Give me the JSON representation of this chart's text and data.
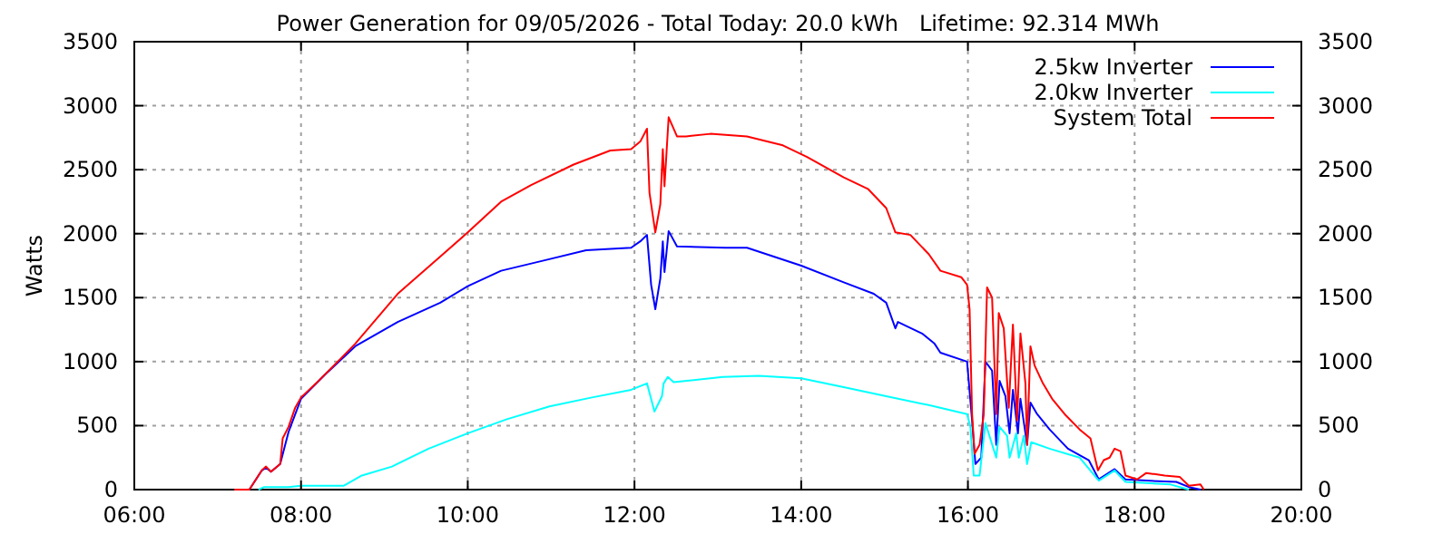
{
  "chart_data": {
    "type": "line",
    "title": "Power Generation for 09/05/2026 - Total Today: 20.0 kWh   Lifetime: 92.314 MWh",
    "ylabel": "Watts",
    "xlim": [
      6,
      20
    ],
    "xticks": [
      {
        "value": 6,
        "label": "06:00"
      },
      {
        "value": 8,
        "label": "08:00"
      },
      {
        "value": 10,
        "label": "10:00"
      },
      {
        "value": 12,
        "label": "12:00"
      },
      {
        "value": 14,
        "label": "14:00"
      },
      {
        "value": 16,
        "label": "16:00"
      },
      {
        "value": 18,
        "label": "18:00"
      },
      {
        "value": 20,
        "label": "20:00"
      }
    ],
    "ylim": [
      0,
      3500
    ],
    "yticks": [
      0,
      500,
      1000,
      1500,
      2000,
      2500,
      3000,
      3500
    ],
    "y2lim": [
      0,
      3500
    ],
    "y2ticks": [
      0,
      500,
      1000,
      1500,
      2000,
      2500,
      3000,
      3500
    ],
    "grid": true,
    "legend": "top right",
    "line_style": "solid",
    "marker": "none",
    "series": [
      {
        "name": "2.5kw Inverter",
        "color": "#0000ff",
        "x": [
          7.2,
          7.38,
          7.53,
          7.58,
          7.64,
          7.75,
          7.85,
          8.0,
          8.29,
          8.65,
          9.16,
          9.67,
          10.0,
          10.4,
          10.91,
          11.42,
          11.96,
          12.07,
          12.15,
          12.2,
          12.25,
          12.31,
          12.34,
          12.36,
          12.41,
          12.51,
          13.09,
          13.35,
          14.0,
          14.51,
          14.87,
          15.02,
          15.13,
          15.16,
          15.45,
          15.6,
          15.67,
          15.99,
          16.05,
          16.09,
          16.16,
          16.21,
          16.29,
          16.34,
          16.38,
          16.45,
          16.5,
          16.54,
          16.6,
          16.63,
          16.71,
          16.75,
          16.83,
          16.98,
          17.2,
          17.45,
          17.57,
          17.76,
          17.89,
          18.14,
          18.5,
          18.65,
          18.79
        ],
        "values": [
          0,
          0,
          150,
          170,
          140,
          200,
          450,
          710,
          900,
          1120,
          1310,
          1460,
          1590,
          1710,
          1790,
          1870,
          1890,
          1940,
          1990,
          1600,
          1410,
          1650,
          1940,
          1700,
          2020,
          1900,
          1890,
          1890,
          1750,
          1620,
          1530,
          1460,
          1260,
          1310,
          1220,
          1140,
          1070,
          1000,
          540,
          200,
          250,
          1000,
          930,
          350,
          850,
          730,
          440,
          780,
          440,
          710,
          350,
          680,
          590,
          470,
          320,
          230,
          80,
          160,
          80,
          70,
          60,
          20,
          0
        ]
      },
      {
        "name": "2.0kw Inverter",
        "color": "#00ffff",
        "x": [
          7.49,
          7.56,
          7.85,
          8.0,
          8.51,
          8.73,
          9.09,
          9.53,
          10.0,
          10.47,
          10.98,
          11.49,
          11.96,
          12.15,
          12.24,
          12.33,
          12.35,
          12.4,
          12.47,
          13.06,
          13.49,
          14.0,
          14.51,
          15.02,
          15.53,
          15.99,
          16.03,
          16.07,
          16.14,
          16.21,
          16.34,
          16.38,
          16.47,
          16.5,
          16.58,
          16.61,
          16.67,
          16.71,
          16.76,
          16.98,
          17.34,
          17.57,
          17.76,
          17.89,
          18.43,
          18.65
        ],
        "values": [
          0,
          20,
          20,
          30,
          30,
          110,
          180,
          320,
          440,
          550,
          650,
          720,
          780,
          830,
          610,
          730,
          830,
          880,
          840,
          880,
          890,
          870,
          800,
          730,
          660,
          590,
          490,
          110,
          110,
          520,
          250,
          490,
          420,
          250,
          440,
          250,
          420,
          200,
          370,
          320,
          250,
          70,
          150,
          60,
          40,
          0
        ]
      },
      {
        "name": "System Total",
        "color": "#ff0000",
        "x": [
          7.2,
          7.38,
          7.53,
          7.58,
          7.64,
          7.75,
          7.78,
          7.85,
          7.93,
          8.0,
          8.18,
          8.44,
          8.65,
          9.16,
          9.67,
          10.0,
          10.4,
          10.76,
          11.27,
          11.71,
          11.96,
          12.07,
          12.15,
          12.18,
          12.25,
          12.31,
          12.34,
          12.36,
          12.41,
          12.51,
          12.62,
          12.91,
          13.35,
          13.78,
          14.07,
          14.51,
          14.8,
          15.02,
          15.13,
          15.31,
          15.53,
          15.67,
          15.92,
          15.99,
          16.02,
          16.05,
          16.08,
          16.14,
          16.19,
          16.23,
          16.29,
          16.34,
          16.37,
          16.43,
          16.49,
          16.54,
          16.59,
          16.63,
          16.69,
          16.71,
          16.75,
          16.8,
          16.9,
          17.01,
          17.16,
          17.34,
          17.47,
          17.56,
          17.63,
          17.7,
          17.76,
          17.83,
          17.89,
          18.03,
          18.14,
          18.36,
          18.54,
          18.65,
          18.79,
          18.83
        ],
        "values": [
          0,
          0,
          150,
          180,
          140,
          200,
          400,
          490,
          640,
          720,
          830,
          1000,
          1140,
          1530,
          1820,
          2010,
          2250,
          2380,
          2540,
          2650,
          2660,
          2720,
          2820,
          2320,
          2010,
          2230,
          2660,
          2370,
          2910,
          2760,
          2760,
          2780,
          2760,
          2690,
          2600,
          2440,
          2350,
          2200,
          2010,
          1990,
          1840,
          1710,
          1660,
          1600,
          1410,
          590,
          280,
          350,
          590,
          1580,
          1500,
          590,
          1380,
          1260,
          640,
          1290,
          540,
          1220,
          830,
          350,
          1120,
          970,
          830,
          710,
          590,
          470,
          400,
          150,
          230,
          250,
          320,
          300,
          110,
          80,
          130,
          110,
          100,
          30,
          40,
          0
        ]
      }
    ]
  }
}
